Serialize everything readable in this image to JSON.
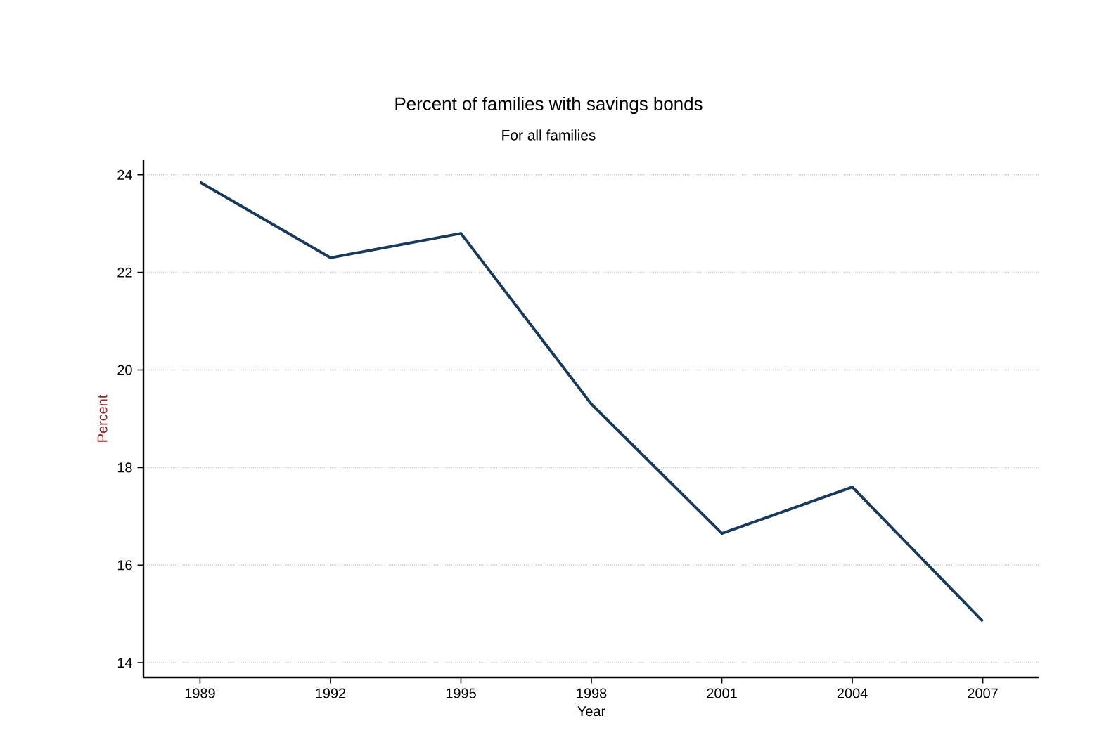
{
  "chart_data": {
    "type": "line",
    "title": "Percent of families with savings bonds",
    "subtitle": "For all families",
    "xlabel": "Year",
    "ylabel": "Percent",
    "x": [
      1989,
      1992,
      1995,
      1998,
      2001,
      2004,
      2007
    ],
    "series": [
      {
        "color": "#1a3a5c",
        "values": [
          23.85,
          22.3,
          22.8,
          19.3,
          16.65,
          17.6,
          14.85
        ]
      }
    ],
    "xlim": [
      1987.7,
      2008.3
    ],
    "ylim": [
      13.7,
      24.3
    ],
    "xticks": [
      1989,
      1992,
      1995,
      1998,
      2001,
      2004,
      2007
    ],
    "yticks": [
      14,
      16,
      18,
      20,
      22,
      24
    ],
    "grid": "y",
    "line_style": "solid"
  }
}
